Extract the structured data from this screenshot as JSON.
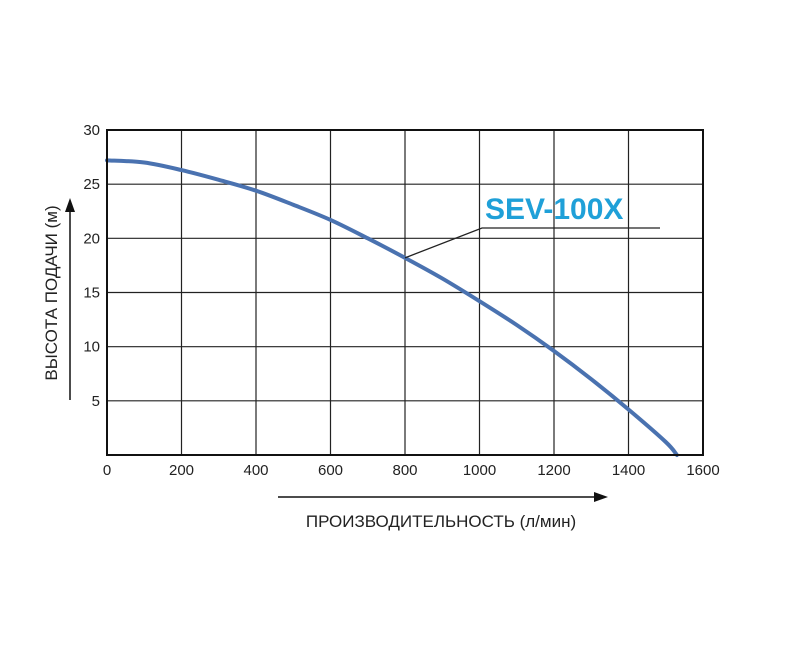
{
  "chart_data": {
    "type": "line",
    "xlabel": "ПРОИЗВОДИТЕЛЬНОСТЬ (л/мин)",
    "ylabel": "ВЫСОТА ПОДАЧИ (м)",
    "xlim": [
      0,
      1600
    ],
    "ylim": [
      0,
      30
    ],
    "x_ticks": [
      "0",
      "200",
      "400",
      "600",
      "800",
      "1000",
      "1200",
      "1400",
      "1600"
    ],
    "y_ticks": [
      "5",
      "10",
      "15",
      "20",
      "25",
      "30"
    ],
    "grid": true,
    "series": [
      {
        "name": "SEV-100X",
        "color": "#4a72b0",
        "x": [
          0,
          100,
          200,
          300,
          400,
          500,
          600,
          700,
          800,
          900,
          1000,
          1100,
          1200,
          1300,
          1400,
          1500,
          1530
        ],
        "y": [
          27.2,
          27.0,
          26.3,
          25.4,
          24.4,
          23.1,
          21.7,
          20.0,
          18.2,
          16.3,
          14.2,
          12.0,
          9.6,
          7.0,
          4.2,
          1.2,
          0
        ]
      }
    ],
    "annotations": [
      {
        "text": "SEV-100X",
        "color": "#1fa0d8"
      }
    ]
  }
}
